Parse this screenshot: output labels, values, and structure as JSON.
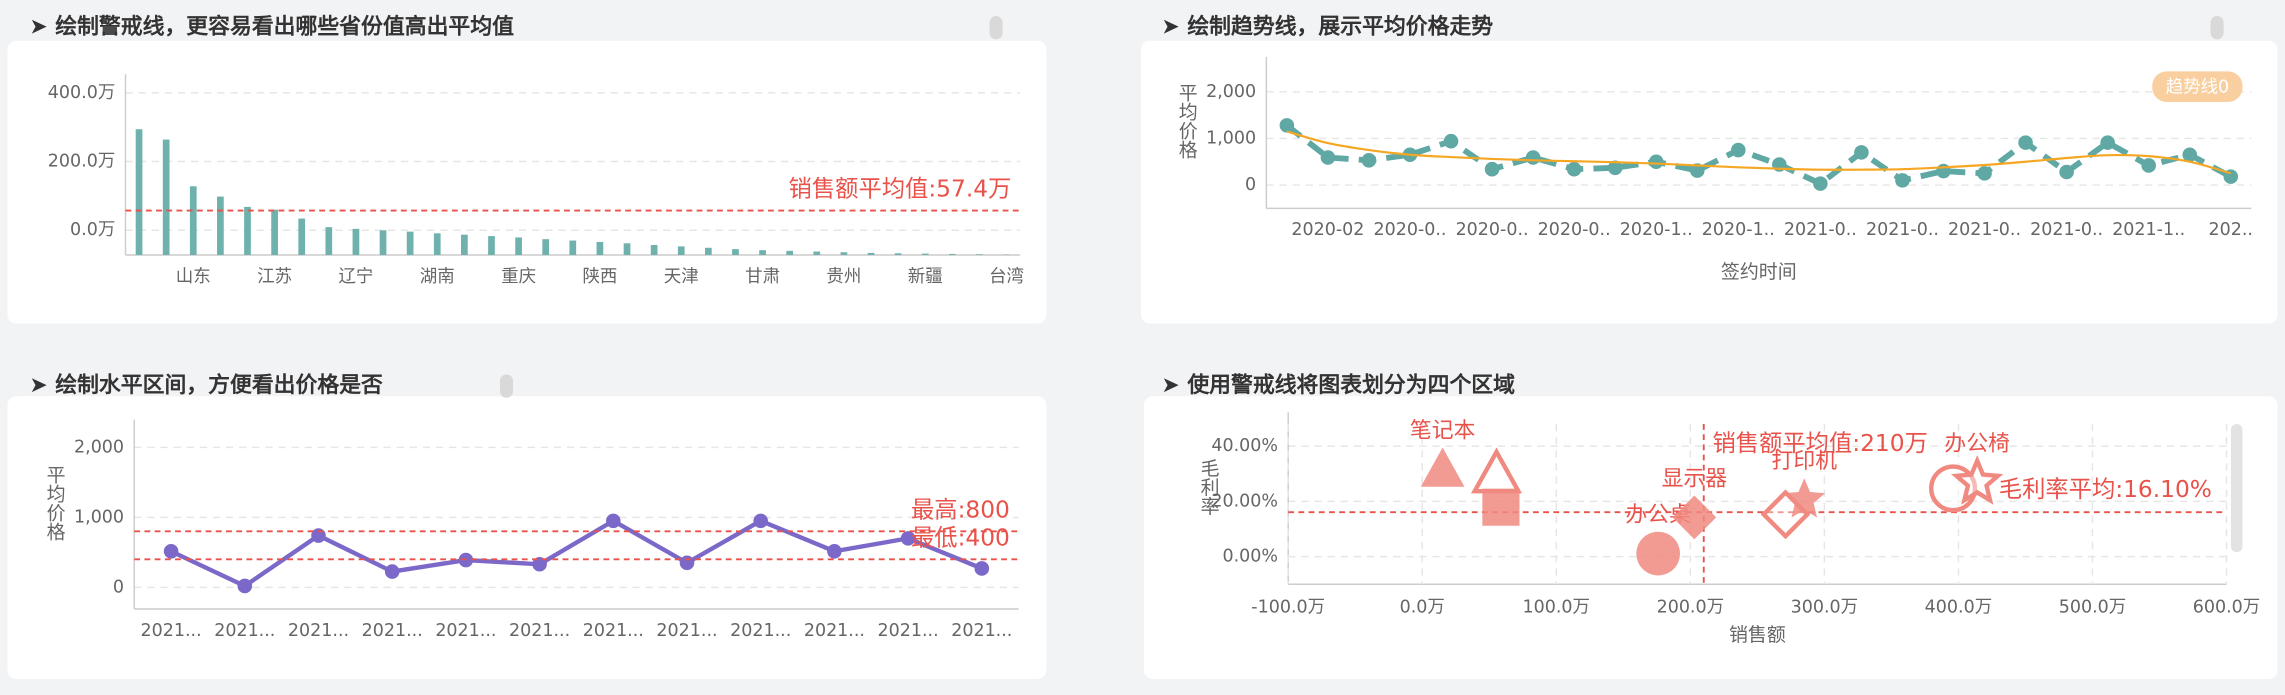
{
  "chart_data": [
    {
      "type": "bar",
      "title": "➤ 绘制警戒线，更容易看出哪些省份值高出平均值",
      "categories": [
        null,
        null,
        "山东",
        null,
        null,
        "江苏",
        null,
        null,
        "辽宁",
        null,
        null,
        "湖南",
        null,
        null,
        "重庆",
        null,
        null,
        "陕西",
        null,
        null,
        "天津",
        null,
        null,
        "甘肃",
        null,
        null,
        "贵州",
        null,
        null,
        "新疆",
        null,
        null,
        "台湾"
      ],
      "values": [
        294,
        264,
        128,
        98,
        68,
        60,
        34,
        9,
        4,
        0,
        -4,
        -9,
        -13,
        -17,
        -21,
        -26,
        -30,
        -34,
        -38,
        -43,
        -47,
        -51,
        -55,
        -58,
        -60,
        -62,
        -64,
        -66,
        -67,
        -68,
        -69,
        -70,
        -71
      ],
      "color": "#6fb1ac",
      "ylim": [
        -72,
        420
      ],
      "yticks": [
        {
          "value": 0,
          "label": "0.0万"
        },
        {
          "value": 200,
          "label": "200.0万"
        },
        {
          "value": 400,
          "label": "400.0万"
        }
      ],
      "grid": true,
      "mark_lines": [
        {
          "value": 57.4,
          "label": "销售额平均值:57.4万",
          "color": "#e8524a"
        }
      ]
    },
    {
      "type": "line",
      "title": "➤ 绘制趋势线，展示平均价格走势",
      "y_label": "平均价格",
      "x_label": "签约时间",
      "categories": [
        null,
        "2020-02",
        null,
        "2020-0..",
        null,
        "2020-0..",
        null,
        "2020-0..",
        null,
        "2020-1..",
        null,
        "2020-1..",
        null,
        "2021-0..",
        null,
        "2021-0..",
        null,
        "2021-0..",
        null,
        "2021-0..",
        null,
        "2021-1..",
        null,
        "202.."
      ],
      "series": [
        {
          "color": "#5fa8a4",
          "line_style": "dashed",
          "markers": true,
          "values": [
            1280,
            590,
            530,
            650,
            940,
            340,
            590,
            340,
            370,
            500,
            310,
            750,
            440,
            30,
            700,
            100,
            300,
            250,
            910,
            280,
            910,
            420,
            650,
            180
          ]
        },
        {
          "name": "趋势线0",
          "color": "#f5a623",
          "smooth": true,
          "values": [
            1150,
            900,
            750,
            650,
            600,
            560,
            530,
            510,
            490,
            460,
            420,
            380,
            350,
            330,
            330,
            340,
            380,
            430,
            500,
            580,
            640,
            620,
            500,
            250
          ]
        }
      ],
      "ylim": [
        -500,
        2500
      ],
      "yticks": [
        0,
        {
          "value": 1000,
          "label": "1,000"
        },
        {
          "value": 2000,
          "label": "2,000"
        }
      ],
      "grid": true,
      "legend": "top-right"
    },
    {
      "type": "line",
      "title": "➤ 绘制水平区间，方便看出价格是否",
      "y_label": "平均价格",
      "categories": [
        "2021...",
        "2021...",
        "2021...",
        "2021...",
        "2021...",
        "2021...",
        "2021...",
        "2021...",
        "2021...",
        "2021...",
        "2021...",
        "2021..."
      ],
      "series": [
        {
          "color": "#7b68c8",
          "markers": true,
          "values": [
            515,
            20,
            740,
            225,
            390,
            330,
            950,
            350,
            950,
            515,
            700,
            270
          ]
        }
      ],
      "ylim": [
        -310,
        2230
      ],
      "yticks": [
        0,
        {
          "value": 1000,
          "label": "1,000"
        },
        {
          "value": 2000,
          "label": "2,000"
        }
      ],
      "grid": true,
      "mark_lines": [
        {
          "value": 800,
          "label": "最高:800",
          "color": "#e8524a"
        },
        {
          "value": 400,
          "label": "最低:400",
          "color": "#e8524a"
        }
      ]
    },
    {
      "type": "scatter",
      "title": "➤ 使用警戒线将图表划分为四个区域",
      "y_label": "毛利率",
      "x_label": "销售额",
      "x": [
        15.2,
        55.4,
        58.7,
        176,
        203,
        271,
        285,
        396,
        414
      ],
      "y": [
        31.6,
        30,
        17.9,
        1.1,
        14.2,
        15.3,
        20.5,
        24.7,
        26.8
      ],
      "labels": [
        "笔记本",
        null,
        null,
        "办公桌",
        "显示器",
        null,
        "打印机",
        null,
        "办公椅"
      ],
      "symbols": [
        "triangle",
        "triangle",
        "square",
        "circle",
        "diamond",
        "diamond",
        "star",
        "circle",
        "star"
      ],
      "filled": [
        true,
        false,
        true,
        true,
        true,
        false,
        true,
        false,
        false
      ],
      "color": "#f08a80",
      "xlim": [
        -100,
        600
      ],
      "xticks": [
        {
          "value": -100,
          "label": "-100.0万"
        },
        {
          "value": 0,
          "label": "0.0万"
        },
        {
          "value": 100,
          "label": "100.0万"
        },
        {
          "value": 200,
          "label": "200.0万"
        },
        {
          "value": 300,
          "label": "300.0万"
        },
        {
          "value": 400,
          "label": "400.0万"
        },
        {
          "value": 500,
          "label": "500.0万"
        },
        {
          "value": 600,
          "label": "600.0万"
        }
      ],
      "ylim": [
        -10,
        48
      ],
      "yticks": [
        {
          "value": 0,
          "label": "0.00%"
        },
        {
          "value": 20,
          "label": "20.00%"
        },
        {
          "value": 40,
          "label": "40.00%"
        }
      ],
      "grid": true,
      "mark_lines": [
        {
          "axis": "x",
          "value": 210,
          "label": "销售额平均值:210万",
          "color": "#e8524a"
        },
        {
          "axis": "y",
          "value": 16.1,
          "label": "毛利率平均:16.10%",
          "color": "#e8524a"
        }
      ]
    }
  ]
}
